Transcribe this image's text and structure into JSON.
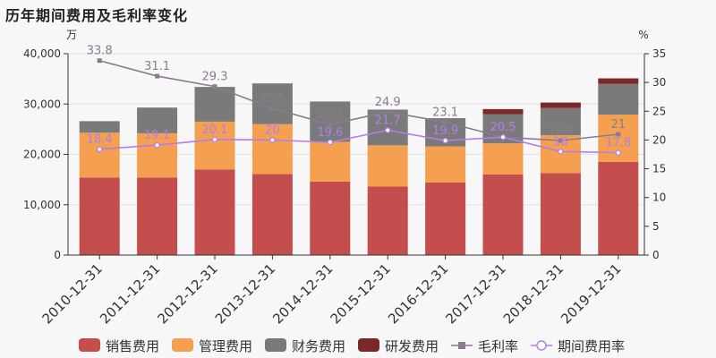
{
  "title": "历年期间费用及毛利率变化",
  "chart_data": {
    "type": "bar",
    "stacked": true,
    "categories": [
      "2010-12-31",
      "2011-12-31",
      "2012-12-31",
      "2013-12-31",
      "2014-12-31",
      "2015-12-31",
      "2016-12-31",
      "2017-12-31",
      "2018-12-31",
      "2019-12-31"
    ],
    "left_axis": {
      "unit": "万",
      "ylim": [
        0,
        40000
      ],
      "ticks": [
        "0",
        "10,000",
        "20,000",
        "30,000",
        "40,000"
      ]
    },
    "right_axis": {
      "unit": "%",
      "ylim": [
        0,
        35
      ],
      "ticks": [
        "0",
        "5",
        "10",
        "15",
        "20",
        "25",
        "30",
        "35"
      ]
    },
    "series": [
      {
        "name": "销售费用",
        "type": "bar",
        "color": "#c44e4e",
        "values": [
          15400,
          15400,
          17000,
          16100,
          14600,
          13600,
          14400,
          16000,
          16300,
          18500
        ]
      },
      {
        "name": "管理费用",
        "type": "bar",
        "color": "#f5a050",
        "values": [
          8900,
          8800,
          9500,
          9900,
          7900,
          8200,
          7200,
          6200,
          7500,
          9400
        ]
      },
      {
        "name": "财务费用",
        "type": "bar",
        "color": "#7a7a7a",
        "values": [
          2300,
          5100,
          6900,
          8100,
          8000,
          7100,
          5600,
          5800,
          5400,
          6100
        ]
      },
      {
        "name": "研发费用",
        "type": "bar",
        "color": "#7a2828",
        "values": [
          0,
          0,
          0,
          0,
          0,
          0,
          0,
          1000,
          1100,
          1100
        ]
      },
      {
        "name": "毛利率",
        "type": "line",
        "axis": "right",
        "color": "#8a7a8e",
        "marker": "square",
        "values": [
          33.8,
          31.1,
          29.3,
          25.5,
          22.7,
          24.9,
          23.1,
          20.5,
          19.9,
          21
        ],
        "labels": [
          "33.8",
          "31.1",
          "29.3",
          "25.5",
          "22.7",
          "24.9",
          "23.1",
          "20.5",
          "19.9",
          "21"
        ]
      },
      {
        "name": "期间费用率",
        "type": "line",
        "axis": "right",
        "color": "#b27ee8",
        "marker": "circle",
        "values": [
          18.4,
          19.1,
          20.1,
          20,
          19.6,
          21.7,
          19.9,
          20.5,
          18,
          17.8
        ],
        "labels": [
          "18.4",
          "19.1",
          "20.1",
          "20",
          "19.6",
          "21.7",
          "19.9",
          "20.5",
          "18",
          "17.8"
        ]
      }
    ],
    "legend": {
      "position": "bottom",
      "items": [
        {
          "label": "销售费用",
          "kind": "bar",
          "color": "#c44e4e"
        },
        {
          "label": "管理费用",
          "kind": "bar",
          "color": "#f5a050"
        },
        {
          "label": "财务费用",
          "kind": "bar",
          "color": "#7a7a7a"
        },
        {
          "label": "研发费用",
          "kind": "bar",
          "color": "#7a2828"
        },
        {
          "label": "毛利率",
          "kind": "line-square",
          "color": "#8a7a8e"
        },
        {
          "label": "期间费用率",
          "kind": "line-circle",
          "color": "#b27ee8"
        }
      ]
    },
    "grid": true
  }
}
